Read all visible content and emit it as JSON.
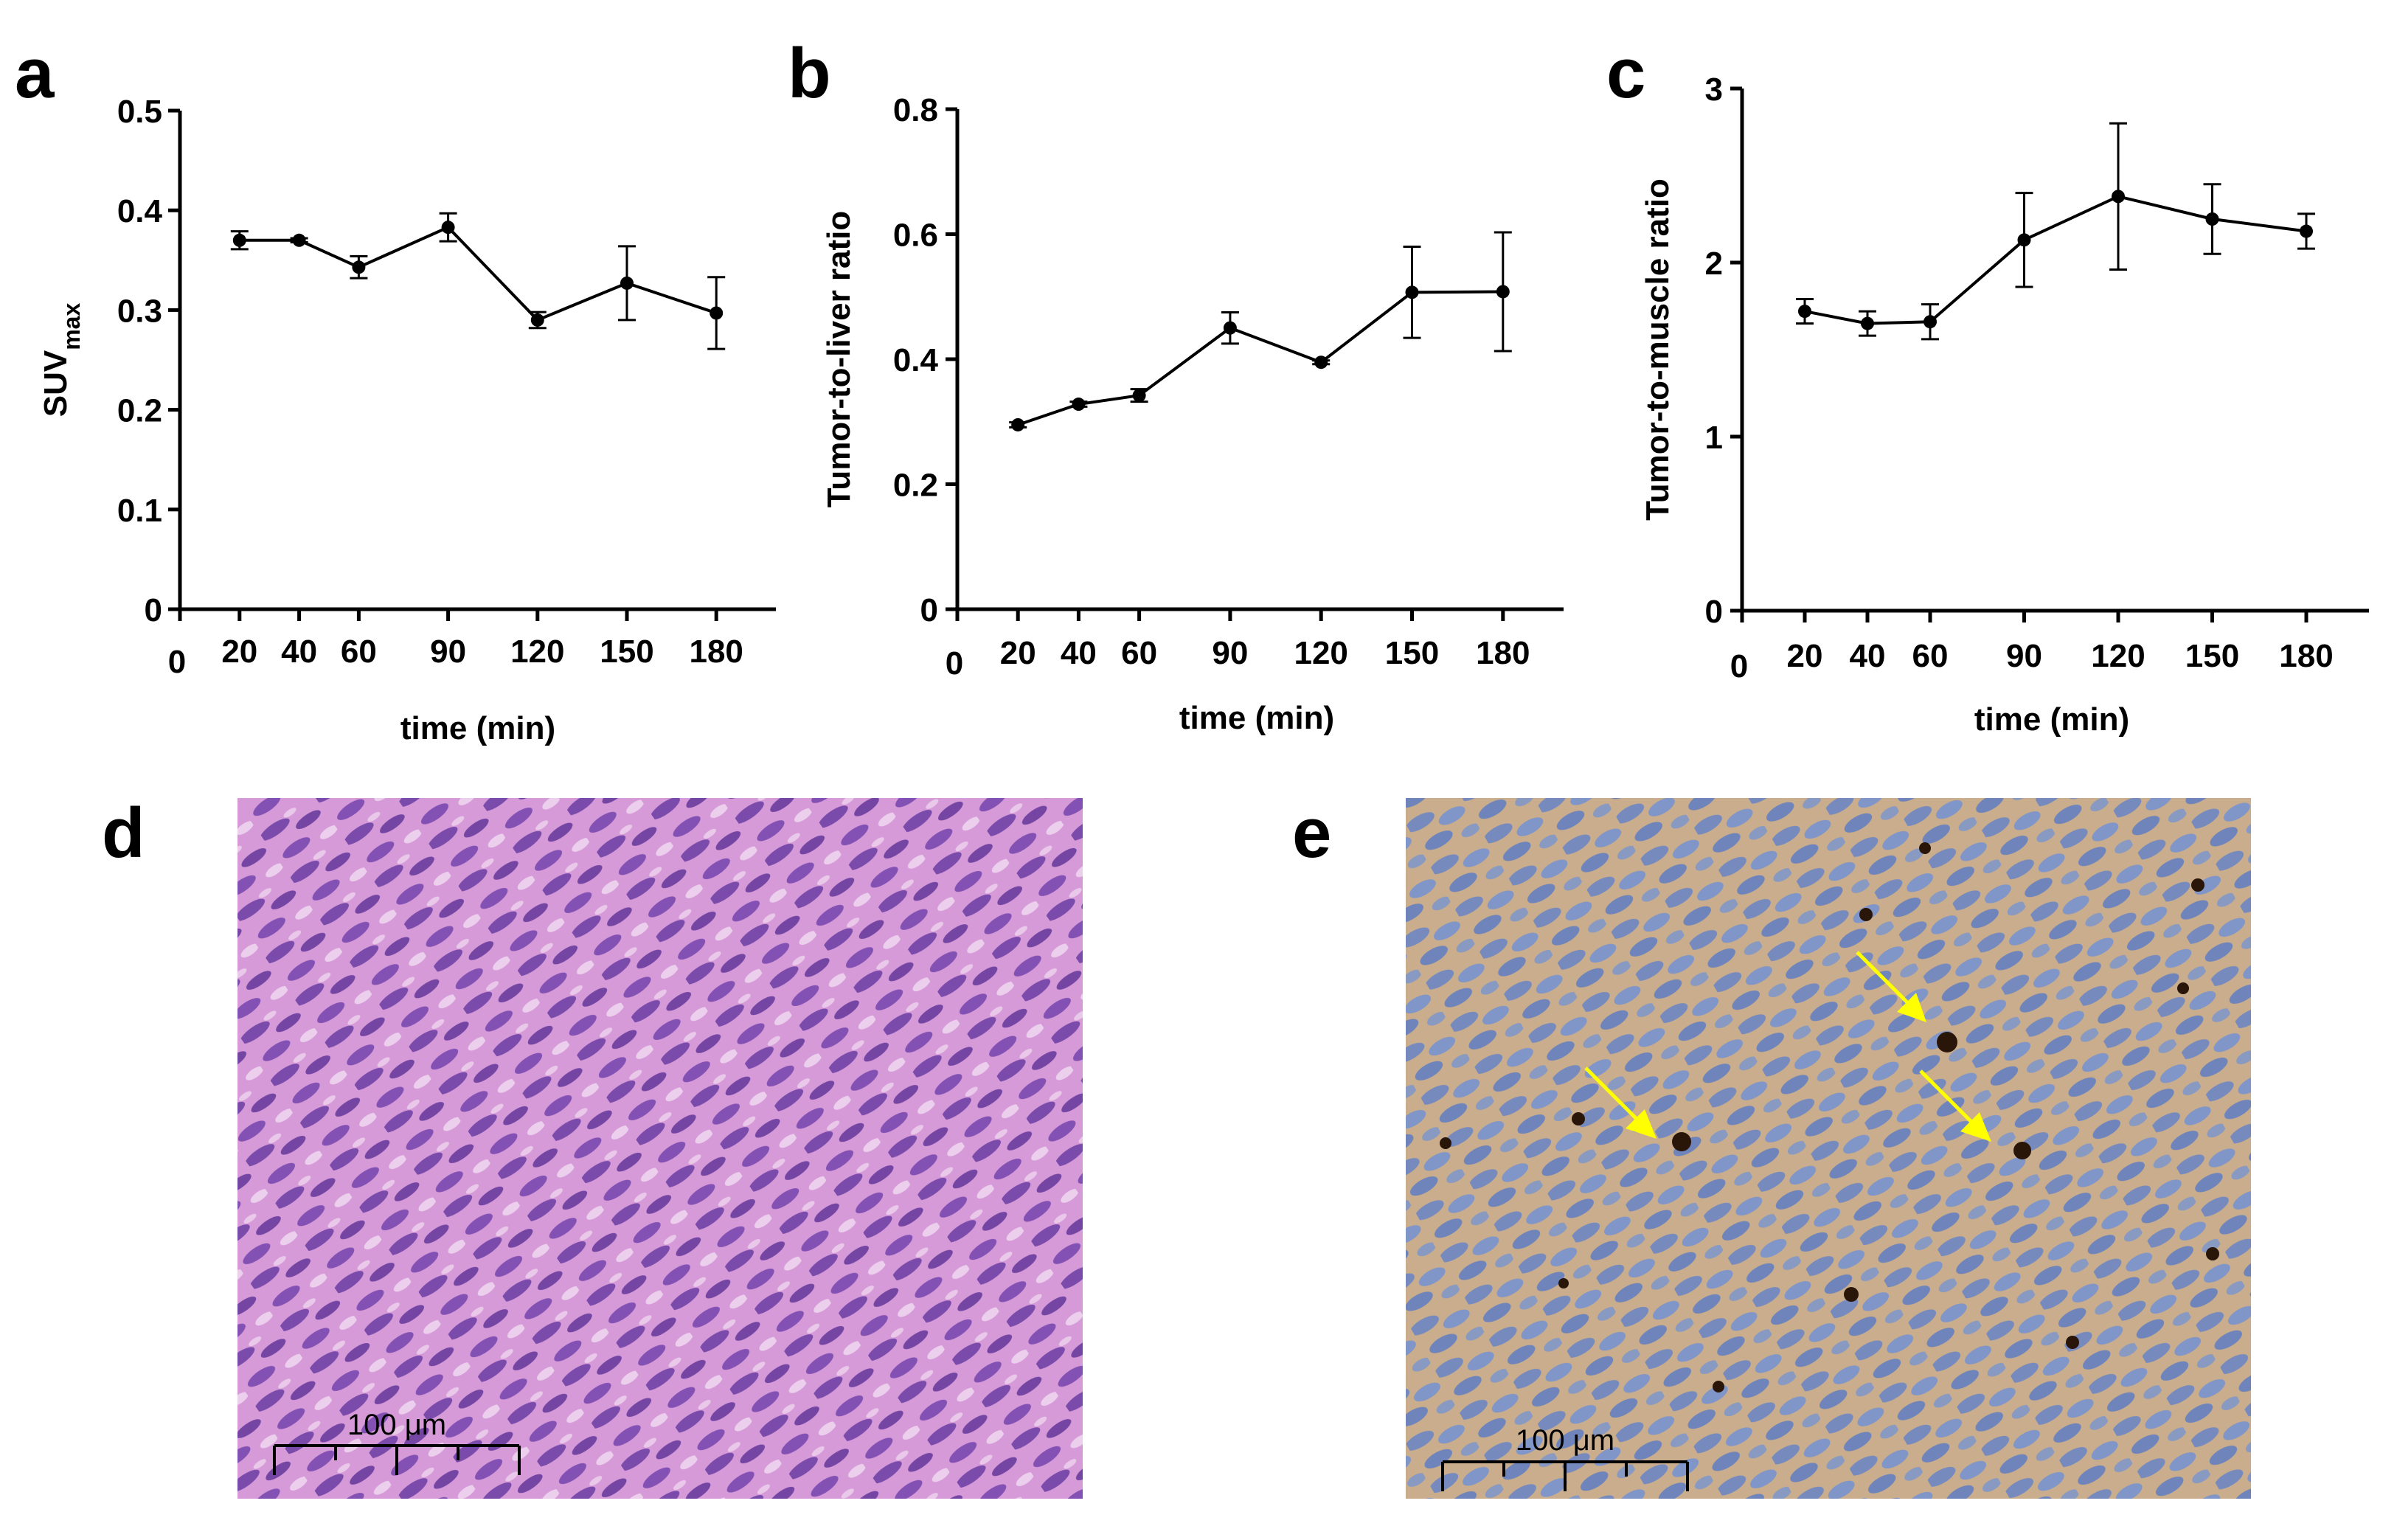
{
  "panels": {
    "a": "a",
    "b": "b",
    "c": "c",
    "d": "d",
    "e": "e"
  },
  "chart_data": [
    {
      "type": "line",
      "panel": "a",
      "xlabel": "time (min)",
      "ylabel": "SUV",
      "ylabel_sub": "max",
      "x": [
        20,
        40,
        60,
        90,
        120,
        150,
        180
      ],
      "xlim": [
        0,
        200
      ],
      "x_ticks": [
        0,
        20,
        40,
        60,
        90,
        120,
        150,
        180
      ],
      "ylim": [
        0,
        0.5
      ],
      "y_ticks": [
        "0",
        "0.1",
        "0.2",
        "0.3",
        "0.4",
        "0.5"
      ],
      "series": [
        {
          "values": [
            0.37,
            0.37,
            0.343,
            0.383,
            0.29,
            0.327,
            0.297
          ],
          "errors": [
            0.009,
            0.002,
            0.011,
            0.014,
            0.008,
            0.037,
            0.036
          ]
        }
      ],
      "grid": false,
      "color": "#000000"
    },
    {
      "type": "line",
      "panel": "b",
      "xlabel": "time (min)",
      "ylabel": "Tumor-to-liver ratio",
      "x": [
        20,
        40,
        60,
        90,
        120,
        150,
        180
      ],
      "xlim": [
        0,
        200
      ],
      "x_ticks": [
        0,
        20,
        40,
        60,
        90,
        120,
        150,
        180
      ],
      "ylim": [
        0,
        0.8
      ],
      "y_ticks": [
        "0",
        "0.2",
        "0.4",
        "0.6",
        "0.8"
      ],
      "series": [
        {
          "values": [
            0.295,
            0.328,
            0.342,
            0.45,
            0.395,
            0.507,
            0.508
          ],
          "errors": [
            0.004,
            0.004,
            0.01,
            0.025,
            0.003,
            0.073,
            0.095
          ]
        }
      ],
      "grid": false,
      "color": "#000000"
    },
    {
      "type": "line",
      "panel": "c",
      "xlabel": "time (min)",
      "ylabel": "Tumor-to-muscle ratio",
      "x": [
        20,
        40,
        60,
        90,
        120,
        150,
        180
      ],
      "xlim": [
        0,
        200
      ],
      "x_ticks": [
        0,
        20,
        40,
        60,
        90,
        120,
        150,
        180
      ],
      "ylim": [
        0,
        3
      ],
      "y_ticks": [
        "0",
        "1",
        "2",
        "3"
      ],
      "series": [
        {
          "values": [
            1.72,
            1.65,
            1.66,
            2.13,
            2.38,
            2.25,
            2.18
          ],
          "errors": [
            0.07,
            0.07,
            0.1,
            0.27,
            0.42,
            0.2,
            0.1
          ]
        }
      ],
      "grid": false,
      "color": "#000000"
    }
  ],
  "images": {
    "d": {
      "description_icon": "he-stain-micrograph",
      "scale_bar": "100 μm",
      "tint": "#b06fc8"
    },
    "e": {
      "description_icon": "ihc-stain-micrograph",
      "scale_bar": "100 μm",
      "tint": "#8fa0c8",
      "arrow_color": "#ffff00",
      "arrow_count": 3
    }
  }
}
